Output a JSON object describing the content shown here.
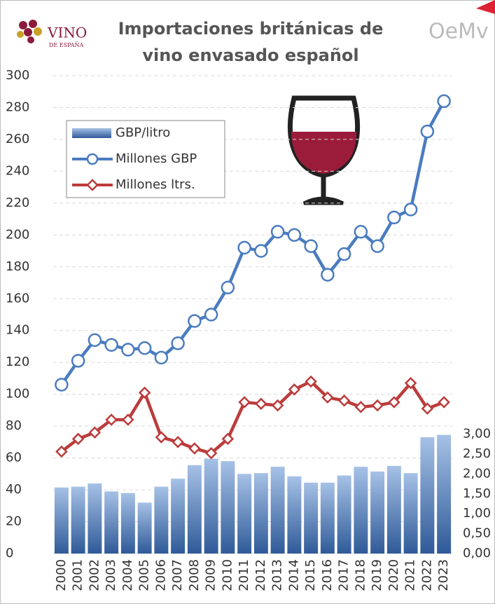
{
  "chart_data": {
    "type": "combo",
    "title_lines": [
      "Importaciones británicas de",
      "vino envasado español"
    ],
    "logo_left": [
      "VINO",
      "DE ESPAÑA"
    ],
    "logo_right": "OeMv",
    "categories": [
      "2000",
      "2001",
      "2002",
      "2003",
      "2004",
      "2005",
      "2006",
      "2007",
      "2008",
      "2009",
      "2010",
      "2011",
      "2012",
      "2013",
      "2014",
      "2015",
      "2016",
      "2017",
      "2018",
      "2019",
      "2020",
      "2021",
      "2022",
      "2023"
    ],
    "series": [
      {
        "name": "GBP/litro",
        "type": "bar",
        "axis": "y2",
        "color": "#4a78b8",
        "values": [
          1.66,
          1.68,
          1.76,
          1.56,
          1.52,
          1.28,
          1.68,
          1.88,
          2.22,
          2.38,
          2.32,
          2.0,
          2.02,
          2.18,
          1.94,
          1.78,
          1.78,
          1.96,
          2.18,
          2.06,
          2.2,
          2.02,
          2.92,
          2.98
        ]
      },
      {
        "name": "Millones GBP",
        "type": "line",
        "marker": "circle",
        "color": "#4a7cc0",
        "values": [
          106,
          121,
          134,
          131,
          128,
          129,
          123,
          132,
          146,
          150,
          167,
          192,
          190,
          202,
          200,
          193,
          175,
          188,
          202,
          193,
          211,
          216,
          265,
          284
        ]
      },
      {
        "name": "Millones ltrs.",
        "type": "line",
        "marker": "diamond",
        "color": "#bc3c3c",
        "values": [
          64,
          72,
          76,
          84,
          84,
          101,
          73,
          70,
          66,
          63,
          72,
          95,
          94,
          93,
          103,
          108,
          98,
          96,
          92,
          93,
          95,
          107,
          91,
          95
        ]
      }
    ],
    "ylim": [
      0,
      300
    ],
    "yticks": [
      0,
      20,
      40,
      60,
      80,
      100,
      120,
      140,
      160,
      180,
      200,
      220,
      240,
      260,
      280,
      300
    ],
    "y2lim": [
      0,
      12
    ],
    "y2ticks": [
      {
        "value": 0,
        "label": "0,00"
      },
      {
        "value": 0.5,
        "label": "0,50"
      },
      {
        "value": 1,
        "label": "1,00"
      },
      {
        "value": 1.5,
        "label": "1,50"
      },
      {
        "value": 2,
        "label": "2,00"
      },
      {
        "value": 2.5,
        "label": "2,50"
      },
      {
        "value": 3,
        "label": "3,00"
      }
    ],
    "grid": true,
    "legend": "upper left"
  }
}
